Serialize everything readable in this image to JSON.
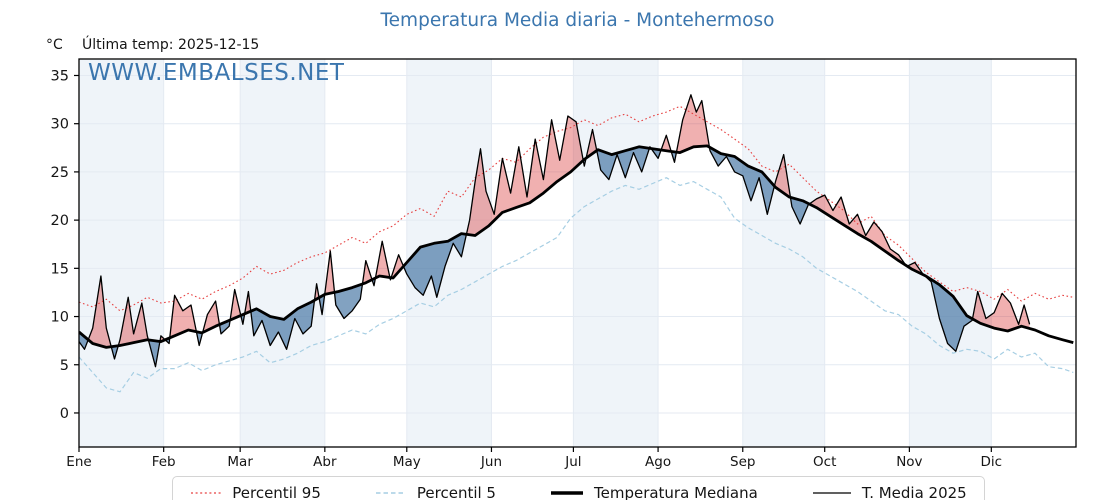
{
  "header": {
    "title": "Temperatura Media diaria - Montehermoso",
    "unit_label": "°C",
    "last_temp": "Última temp: 2025-12-15",
    "watermark": "WWW.EMBALSES.NET",
    "title_color": "#3b76ae"
  },
  "legend": {
    "items": [
      {
        "label": "Percentil 95",
        "color": "#e64040",
        "style": "dotted"
      },
      {
        "label": "Percentil 5",
        "color": "#a6cee3",
        "style": "dashed"
      },
      {
        "label": "Temperatura Mediana",
        "color": "#000000",
        "style": "solid-thick"
      },
      {
        "label": "T. Media 2025",
        "color": "#000000",
        "style": "solid-thin"
      }
    ]
  },
  "chart_data": {
    "type": "line",
    "title": "Temperatura Media diaria - Montehermoso",
    "xlabel": "",
    "ylabel": "°C",
    "ylim": [
      -3.53,
      36.71
    ],
    "yticks": [
      0,
      5,
      10,
      15,
      20,
      25,
      30,
      35
    ],
    "grid": true,
    "legend_position": "bottom",
    "month_labels": [
      "Ene",
      "Feb",
      "Mar",
      "Abr",
      "May",
      "Jun",
      "Jul",
      "Ago",
      "Sep",
      "Oct",
      "Nov",
      "Dic"
    ],
    "month_start_days": [
      1,
      32,
      60,
      91,
      121,
      152,
      182,
      213,
      244,
      274,
      305,
      335
    ],
    "days_in_year": 365,
    "last_data_day": 349,
    "colors": {
      "band": "#eff4f9",
      "grid": "#e4eaf2",
      "axis": "#000000",
      "fill_above": "rgba(215,48,48,0.38)",
      "fill_below": "rgba(54,105,155,0.62)"
    },
    "series": [
      {
        "name": "Percentil 95",
        "type": "dotted",
        "color": "#e64040",
        "width": 1.1,
        "days": [
          1,
          6,
          11,
          16,
          21,
          26,
          31,
          36,
          41,
          46,
          51,
          56,
          61,
          66,
          71,
          76,
          81,
          86,
          91,
          96,
          101,
          106,
          111,
          116,
          121,
          126,
          131,
          136,
          141,
          146,
          151,
          156,
          161,
          166,
          171,
          176,
          181,
          186,
          191,
          196,
          201,
          206,
          211,
          216,
          221,
          226,
          231,
          236,
          241,
          246,
          251,
          256,
          261,
          266,
          271,
          276,
          281,
          286,
          291,
          296,
          301,
          306,
          311,
          316,
          321,
          326,
          331,
          336,
          341,
          346,
          351,
          356,
          361,
          365
        ],
        "values": [
          11.5,
          11.0,
          11.8,
          10.6,
          11.2,
          12.0,
          11.4,
          11.6,
          12.4,
          11.8,
          12.6,
          13.2,
          14.0,
          15.2,
          14.4,
          14.8,
          15.6,
          16.2,
          16.6,
          17.4,
          18.2,
          17.6,
          18.8,
          19.4,
          20.6,
          21.2,
          20.4,
          23.0,
          22.4,
          24.4,
          25.2,
          26.4,
          26.0,
          27.4,
          28.6,
          29.2,
          29.6,
          30.4,
          29.8,
          30.6,
          31.0,
          30.2,
          30.8,
          31.2,
          31.8,
          31.0,
          30.2,
          29.4,
          28.4,
          27.4,
          25.6,
          25.0,
          25.8,
          24.4,
          23.0,
          22.0,
          21.0,
          19.6,
          20.4,
          18.4,
          17.4,
          16.0,
          14.6,
          13.6,
          12.6,
          13.0,
          12.6,
          11.8,
          12.8,
          11.6,
          12.4,
          11.8,
          12.2,
          12.0
        ]
      },
      {
        "name": "Percentil 5",
        "type": "dashed",
        "color": "#a6cee3",
        "width": 1.2,
        "days": [
          1,
          6,
          11,
          16,
          21,
          26,
          31,
          36,
          41,
          46,
          51,
          56,
          61,
          66,
          71,
          76,
          81,
          86,
          91,
          96,
          101,
          106,
          111,
          116,
          121,
          126,
          131,
          136,
          141,
          146,
          151,
          156,
          161,
          166,
          171,
          176,
          181,
          186,
          191,
          196,
          201,
          206,
          211,
          216,
          221,
          226,
          231,
          236,
          241,
          246,
          251,
          256,
          261,
          266,
          271,
          276,
          281,
          286,
          291,
          296,
          301,
          306,
          311,
          316,
          321,
          326,
          331,
          336,
          341,
          346,
          351,
          356,
          361,
          365
        ],
        "values": [
          5.8,
          4.2,
          2.6,
          2.2,
          4.2,
          3.6,
          4.6,
          4.6,
          5.2,
          4.4,
          5.0,
          5.4,
          5.8,
          6.4,
          5.2,
          5.6,
          6.2,
          7.0,
          7.4,
          8.0,
          8.6,
          8.2,
          9.2,
          9.8,
          10.6,
          11.4,
          11.0,
          12.2,
          12.8,
          13.6,
          14.4,
          15.2,
          15.8,
          16.6,
          17.4,
          18.2,
          20.2,
          21.4,
          22.2,
          23.0,
          23.6,
          23.2,
          23.8,
          24.4,
          23.6,
          24.0,
          23.2,
          22.4,
          20.2,
          19.2,
          18.4,
          17.6,
          17.0,
          16.2,
          15.0,
          14.2,
          13.4,
          12.6,
          11.6,
          10.6,
          10.2,
          9.0,
          8.2,
          7.0,
          6.2,
          6.6,
          6.4,
          5.6,
          6.6,
          5.8,
          6.2,
          4.8,
          4.6,
          4.2
        ]
      },
      {
        "name": "Temperatura Mediana",
        "type": "solid-thick",
        "color": "#000000",
        "width": 2.8,
        "days": [
          1,
          6,
          11,
          16,
          21,
          26,
          31,
          36,
          41,
          46,
          51,
          56,
          61,
          66,
          71,
          76,
          81,
          86,
          91,
          96,
          101,
          106,
          111,
          116,
          121,
          126,
          131,
          136,
          141,
          146,
          151,
          156,
          161,
          166,
          171,
          176,
          181,
          186,
          191,
          196,
          201,
          206,
          211,
          216,
          221,
          226,
          231,
          236,
          241,
          246,
          251,
          256,
          261,
          266,
          271,
          276,
          281,
          286,
          291,
          296,
          301,
          306,
          311,
          316,
          321,
          326,
          331,
          336,
          341,
          346,
          351,
          356,
          361,
          365
        ],
        "values": [
          8.4,
          7.2,
          6.8,
          7.0,
          7.3,
          7.6,
          7.4,
          8.0,
          8.6,
          8.3,
          9.0,
          9.6,
          10.2,
          10.8,
          10.0,
          9.7,
          10.8,
          11.5,
          12.3,
          12.6,
          13.0,
          13.5,
          14.2,
          14.0,
          15.6,
          17.2,
          17.6,
          17.8,
          18.6,
          18.4,
          19.4,
          20.8,
          21.3,
          21.8,
          22.8,
          24.0,
          25.0,
          26.3,
          27.3,
          26.8,
          27.2,
          27.6,
          27.4,
          27.2,
          27.0,
          27.6,
          27.7,
          26.9,
          26.6,
          25.6,
          25.0,
          23.4,
          22.4,
          22.0,
          21.3,
          20.4,
          19.5,
          18.6,
          17.8,
          16.8,
          15.8,
          14.9,
          14.2,
          13.3,
          12.1,
          10.1,
          9.3,
          8.8,
          8.5,
          9.0,
          8.6,
          8.0,
          7.6,
          7.3
        ]
      },
      {
        "name": "T. Media 2025",
        "type": "solid-thin",
        "color": "#000000",
        "width": 1.3,
        "days": [
          1,
          3,
          6,
          9,
          11,
          14,
          16,
          19,
          21,
          24,
          26,
          29,
          31,
          34,
          36,
          39,
          42,
          45,
          48,
          51,
          53,
          56,
          58,
          61,
          63,
          65,
          68,
          71,
          74,
          77,
          80,
          83,
          86,
          88,
          90,
          93,
          95,
          98,
          101,
          104,
          106,
          109,
          112,
          115,
          118,
          121,
          124,
          127,
          130,
          132,
          135,
          138,
          141,
          144,
          146,
          148,
          150,
          153,
          156,
          159,
          162,
          165,
          168,
          171,
          174,
          177,
          180,
          183,
          186,
          189,
          192,
          195,
          198,
          201,
          204,
          207,
          210,
          213,
          216,
          219,
          222,
          225,
          227,
          229,
          232,
          235,
          238,
          241,
          244,
          247,
          250,
          253,
          256,
          259,
          262,
          265,
          268,
          271,
          274,
          277,
          280,
          283,
          286,
          289,
          292,
          295,
          298,
          301,
          304,
          307,
          310,
          313,
          316,
          319,
          322,
          325,
          328,
          330,
          333,
          336,
          339,
          342,
          345,
          347,
          349
        ],
        "values": [
          7.4,
          6.6,
          8.8,
          14.2,
          8.8,
          5.6,
          7.6,
          12.0,
          8.2,
          11.4,
          8.0,
          4.8,
          8.0,
          7.2,
          12.2,
          10.6,
          11.2,
          7.0,
          10.2,
          11.6,
          8.2,
          9.0,
          12.8,
          9.2,
          12.6,
          8.0,
          9.6,
          7.0,
          8.4,
          6.6,
          9.8,
          8.2,
          9.0,
          13.4,
          10.2,
          16.8,
          11.2,
          9.8,
          10.6,
          11.8,
          15.8,
          13.2,
          17.8,
          13.8,
          16.4,
          14.4,
          13.0,
          12.2,
          14.2,
          12.0,
          15.2,
          17.6,
          16.2,
          20.0,
          24.0,
          27.4,
          23.0,
          20.6,
          26.4,
          22.8,
          27.6,
          22.4,
          28.4,
          24.2,
          30.4,
          26.2,
          30.8,
          30.2,
          25.6,
          29.4,
          25.2,
          24.2,
          26.8,
          24.4,
          27.0,
          25.0,
          27.6,
          26.4,
          28.8,
          26.0,
          30.4,
          33.0,
          31.2,
          32.4,
          27.2,
          25.6,
          26.6,
          25.0,
          24.6,
          22.0,
          24.4,
          20.6,
          24.0,
          26.8,
          21.4,
          19.6,
          21.6,
          22.2,
          22.6,
          21.0,
          22.4,
          19.6,
          20.6,
          18.4,
          19.8,
          18.8,
          17.0,
          16.4,
          15.2,
          15.6,
          14.4,
          13.6,
          9.8,
          7.2,
          6.4,
          9.0,
          9.6,
          12.6,
          9.8,
          10.4,
          12.4,
          11.4,
          9.2,
          11.2,
          9.2
        ]
      }
    ],
    "fills": {
      "between": "T. Media 2025 vs Temperatura Mediana",
      "above_color": "rgba(215,48,48,0.38)",
      "below_color": "rgba(54,105,155,0.62)"
    }
  }
}
